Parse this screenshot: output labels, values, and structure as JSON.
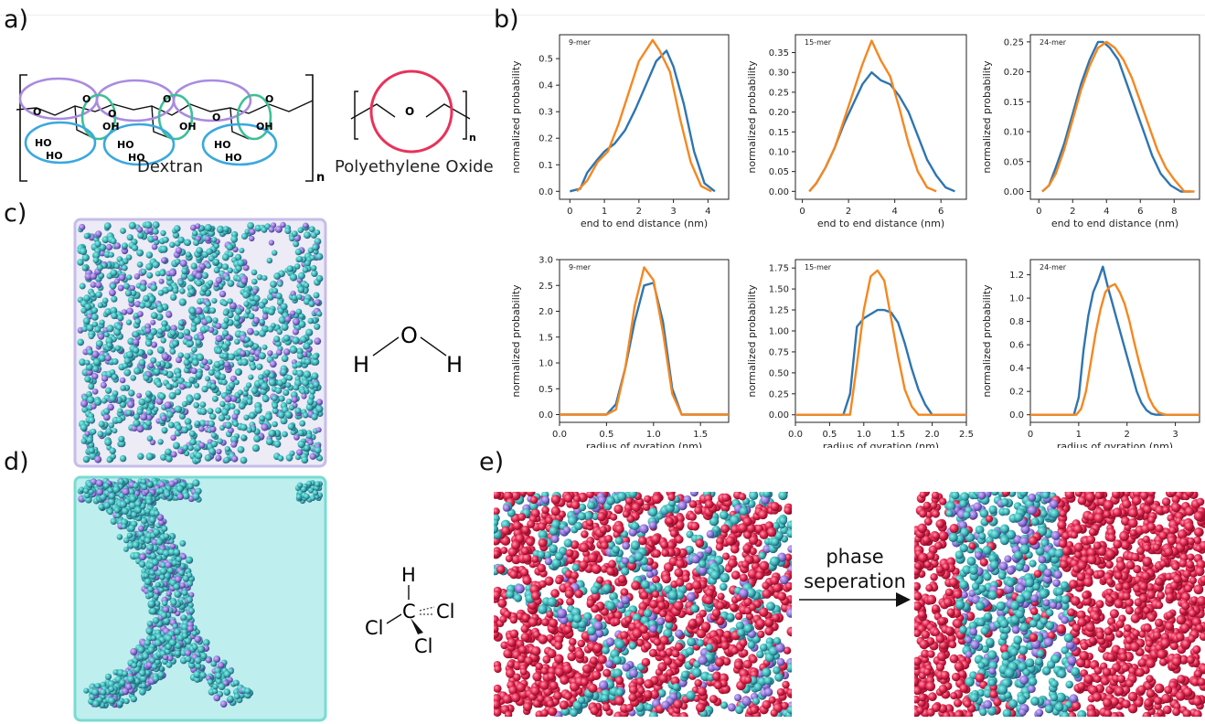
{
  "panel_labels": {
    "a": "a)",
    "b": "b)",
    "c": "c)",
    "d": "d)",
    "e": "e)"
  },
  "panel_a": {
    "dextran_caption": "Dextran",
    "peo_caption": "Polyethylene Oxide",
    "subscript_n": "n",
    "atom_o": "O",
    "atom_oh": "OH",
    "atom_ho": "HO",
    "colors": {
      "purple": "#a98be0",
      "green": "#3dbf96",
      "blue": "#3aa8e0",
      "red": "#e8325a"
    }
  },
  "panel_c": {
    "water_O": "O",
    "water_H": "H"
  },
  "panel_d": {
    "chloroform_C": "C",
    "chloroform_H": "H",
    "chloroform_Cl": "Cl"
  },
  "panel_e": {
    "arrow_label_line1": "phase",
    "arrow_label_line2": "seperation"
  },
  "series_colors": {
    "blue": "#2e75b1",
    "orange": "#f5871f"
  },
  "chart_data": [
    {
      "type": "line",
      "annotation": "9-mer",
      "xlabel": "end to end distance (nm)",
      "ylabel": "normalized probability",
      "xlim": [
        -0.3,
        4.6
      ],
      "ylim": [
        -0.03,
        0.59
      ],
      "xticks": [
        0,
        1,
        2,
        3,
        4
      ],
      "yticks": [
        0.0,
        0.1,
        0.2,
        0.3,
        0.4,
        0.5
      ],
      "xtick_labels": [
        "0",
        "1",
        "2",
        "3",
        "4"
      ],
      "ytick_labels": [
        "0.0",
        "0.1",
        "0.2",
        "0.3",
        "0.4",
        "0.5"
      ],
      "series": [
        {
          "color": "#2e75b1",
          "x": [
            0,
            0.3,
            0.5,
            0.8,
            1.0,
            1.3,
            1.6,
            1.9,
            2.2,
            2.5,
            2.8,
            3.0,
            3.3,
            3.6,
            3.9,
            4.2
          ],
          "y": [
            0.0,
            0.01,
            0.07,
            0.12,
            0.15,
            0.18,
            0.23,
            0.31,
            0.4,
            0.49,
            0.53,
            0.47,
            0.33,
            0.15,
            0.03,
            0.0
          ]
        },
        {
          "color": "#f5871f",
          "x": [
            0.2,
            0.5,
            0.8,
            1.1,
            1.4,
            1.7,
            2.0,
            2.2,
            2.4,
            2.6,
            2.9,
            3.2,
            3.5,
            3.8,
            4.1
          ],
          "y": [
            0.0,
            0.04,
            0.11,
            0.15,
            0.25,
            0.37,
            0.49,
            0.53,
            0.57,
            0.53,
            0.45,
            0.27,
            0.11,
            0.02,
            0.0
          ]
        }
      ]
    },
    {
      "type": "line",
      "annotation": "15-mer",
      "xlabel": "end to end distance (nm)",
      "ylabel": "normalized probability",
      "xlim": [
        -0.3,
        7.1
      ],
      "ylim": [
        -0.02,
        0.395
      ],
      "xticks": [
        0,
        2,
        4,
        6
      ],
      "yticks": [
        0.0,
        0.05,
        0.1,
        0.15,
        0.2,
        0.25,
        0.3,
        0.35
      ],
      "xtick_labels": [
        "0",
        "2",
        "4",
        "6"
      ],
      "ytick_labels": [
        "0.00",
        "0.05",
        "0.10",
        "0.15",
        "0.20",
        "0.25",
        "0.30",
        "0.35"
      ],
      "series": [
        {
          "color": "#2e75b1",
          "x": [
            0.3,
            0.6,
            1.0,
            1.4,
            1.8,
            2.2,
            2.6,
            3.0,
            3.4,
            3.8,
            4.2,
            4.6,
            5.0,
            5.4,
            5.8,
            6.2,
            6.6
          ],
          "y": [
            0.0,
            0.02,
            0.06,
            0.11,
            0.17,
            0.22,
            0.27,
            0.3,
            0.28,
            0.27,
            0.24,
            0.2,
            0.14,
            0.08,
            0.04,
            0.01,
            0.0
          ]
        },
        {
          "color": "#f5871f",
          "x": [
            0.3,
            0.6,
            1.0,
            1.4,
            1.8,
            2.2,
            2.6,
            3.0,
            3.4,
            3.8,
            4.2,
            4.6,
            5.0,
            5.4,
            5.8
          ],
          "y": [
            0.0,
            0.02,
            0.06,
            0.11,
            0.18,
            0.25,
            0.32,
            0.38,
            0.33,
            0.29,
            0.21,
            0.12,
            0.05,
            0.01,
            0.0
          ]
        }
      ]
    },
    {
      "type": "line",
      "annotation": "24-mer",
      "xlabel": "end to end distance (nm)",
      "ylabel": "normalized probability",
      "xlim": [
        -0.5,
        9.5
      ],
      "ylim": [
        -0.013,
        0.262
      ],
      "xticks": [
        0,
        2,
        4,
        6,
        8
      ],
      "yticks": [
        0.0,
        0.05,
        0.1,
        0.15,
        0.2,
        0.25
      ],
      "xtick_labels": [
        "0",
        "2",
        "4",
        "6",
        "8"
      ],
      "ytick_labels": [
        "0.00",
        "0.05",
        "0.10",
        "0.15",
        "0.20",
        "0.25"
      ],
      "series": [
        {
          "color": "#2e75b1",
          "x": [
            0.2,
            0.6,
            1.0,
            1.5,
            2.0,
            2.5,
            3.0,
            3.5,
            3.8,
            4.2,
            4.7,
            5.2,
            5.7,
            6.2,
            6.7,
            7.2,
            7.8,
            8.4,
            9.0
          ],
          "y": [
            0.0,
            0.01,
            0.04,
            0.08,
            0.13,
            0.18,
            0.22,
            0.25,
            0.25,
            0.24,
            0.22,
            0.18,
            0.14,
            0.1,
            0.06,
            0.03,
            0.01,
            0.0,
            0.0
          ]
        },
        {
          "color": "#f5871f",
          "x": [
            0.2,
            0.6,
            1.0,
            1.5,
            2.0,
            2.5,
            3.0,
            3.5,
            4.0,
            4.5,
            5.0,
            5.5,
            6.0,
            6.5,
            7.0,
            7.5,
            8.0,
            8.6,
            9.2
          ],
          "y": [
            0.0,
            0.01,
            0.03,
            0.07,
            0.12,
            0.17,
            0.21,
            0.24,
            0.25,
            0.24,
            0.22,
            0.19,
            0.15,
            0.11,
            0.07,
            0.04,
            0.02,
            0.0,
            0.0
          ]
        }
      ]
    },
    {
      "type": "line",
      "annotation": "9-mer",
      "xlabel": "radius of gyration (nm)",
      "ylabel": "normalized probability",
      "xlim": [
        0,
        1.8
      ],
      "ylim": [
        -0.15,
        3.0
      ],
      "xticks": [
        0.0,
        0.5,
        1.0,
        1.5
      ],
      "yticks": [
        0.0,
        0.5,
        1.0,
        1.5,
        2.0,
        2.5,
        3.0
      ],
      "xtick_labels": [
        "0.0",
        "0.5",
        "1.0",
        "1.5"
      ],
      "ytick_labels": [
        "0.0",
        "0.5",
        "1.0",
        "1.5",
        "2.0",
        "2.5",
        "3.0"
      ],
      "series": [
        {
          "color": "#2e75b1",
          "x": [
            0.0,
            0.5,
            0.6,
            0.7,
            0.8,
            0.9,
            1.0,
            1.1,
            1.2,
            1.3,
            1.8
          ],
          "y": [
            0.0,
            0.0,
            0.2,
            0.9,
            1.8,
            2.5,
            2.55,
            1.8,
            0.5,
            0.0,
            0.0
          ]
        },
        {
          "color": "#f5871f",
          "x": [
            0.0,
            0.5,
            0.6,
            0.7,
            0.8,
            0.9,
            1.0,
            1.1,
            1.2,
            1.3,
            1.8
          ],
          "y": [
            0.0,
            0.0,
            0.1,
            0.9,
            2.1,
            2.85,
            2.6,
            1.6,
            0.4,
            0.0,
            0.0
          ]
        }
      ]
    },
    {
      "type": "line",
      "annotation": "15-mer",
      "xlabel": "radius of gyration (nm)",
      "ylabel": "normalized probability",
      "xlim": [
        0,
        2.5
      ],
      "ylim": [
        -0.09,
        1.85
      ],
      "xticks": [
        0.0,
        0.5,
        1.0,
        1.5,
        2.0,
        2.5
      ],
      "yticks": [
        0.0,
        0.25,
        0.5,
        0.75,
        1.0,
        1.25,
        1.5,
        1.75
      ],
      "xtick_labels": [
        "0.0",
        "0.5",
        "1.0",
        "1.5",
        "2.0",
        "2.5"
      ],
      "ytick_labels": [
        "0.00",
        "0.25",
        "0.50",
        "0.75",
        "1.00",
        "1.25",
        "1.50",
        "1.75"
      ],
      "series": [
        {
          "color": "#2e75b1",
          "x": [
            0.0,
            0.7,
            0.8,
            0.9,
            1.0,
            1.1,
            1.2,
            1.3,
            1.4,
            1.5,
            1.6,
            1.7,
            1.8,
            1.9,
            2.0,
            2.5
          ],
          "y": [
            0.0,
            0.0,
            0.25,
            1.05,
            1.15,
            1.2,
            1.25,
            1.25,
            1.22,
            1.1,
            0.85,
            0.55,
            0.3,
            0.12,
            0.0,
            0.0
          ]
        },
        {
          "color": "#f5871f",
          "x": [
            0.0,
            0.8,
            0.9,
            1.0,
            1.1,
            1.2,
            1.3,
            1.4,
            1.5,
            1.6,
            1.7,
            1.8,
            2.5
          ],
          "y": [
            0.0,
            0.0,
            0.6,
            1.25,
            1.65,
            1.72,
            1.6,
            1.15,
            0.7,
            0.3,
            0.1,
            0.0,
            0.0
          ]
        }
      ]
    },
    {
      "type": "line",
      "annotation": "24-mer",
      "xlabel": "radius of gyration (nm)",
      "ylabel": "normalized probability",
      "xlim": [
        0,
        3.5
      ],
      "ylim": [
        -0.065,
        1.33
      ],
      "xticks": [
        0,
        1,
        2,
        3
      ],
      "yticks": [
        0.0,
        0.2,
        0.4,
        0.6,
        0.8,
        1.0,
        1.2
      ],
      "xtick_labels": [
        "0",
        "1",
        "2",
        "3"
      ],
      "ytick_labels": [
        "0.0",
        "0.2",
        "0.4",
        "0.6",
        "0.8",
        "1.0",
        "1.2"
      ],
      "series": [
        {
          "color": "#2e75b1",
          "x": [
            0.0,
            0.9,
            1.0,
            1.1,
            1.2,
            1.3,
            1.4,
            1.5,
            1.6,
            1.7,
            1.8,
            1.9,
            2.0,
            2.1,
            2.2,
            2.3,
            2.4,
            2.5,
            2.6,
            3.5
          ],
          "y": [
            0.0,
            0.0,
            0.15,
            0.55,
            0.85,
            1.05,
            1.15,
            1.27,
            1.1,
            0.95,
            0.8,
            0.65,
            0.5,
            0.35,
            0.2,
            0.1,
            0.04,
            0.01,
            0.0,
            0.0
          ]
        },
        {
          "color": "#f5871f",
          "x": [
            0.0,
            0.95,
            1.05,
            1.15,
            1.25,
            1.35,
            1.45,
            1.55,
            1.65,
            1.75,
            1.85,
            1.95,
            2.05,
            2.15,
            2.25,
            2.35,
            2.45,
            2.55,
            2.65,
            2.8,
            3.5
          ],
          "y": [
            0.0,
            0.0,
            0.05,
            0.2,
            0.45,
            0.7,
            0.9,
            1.05,
            1.1,
            1.12,
            1.05,
            0.95,
            0.8,
            0.62,
            0.45,
            0.3,
            0.15,
            0.07,
            0.02,
            0.0,
            0.0
          ]
        }
      ]
    }
  ]
}
